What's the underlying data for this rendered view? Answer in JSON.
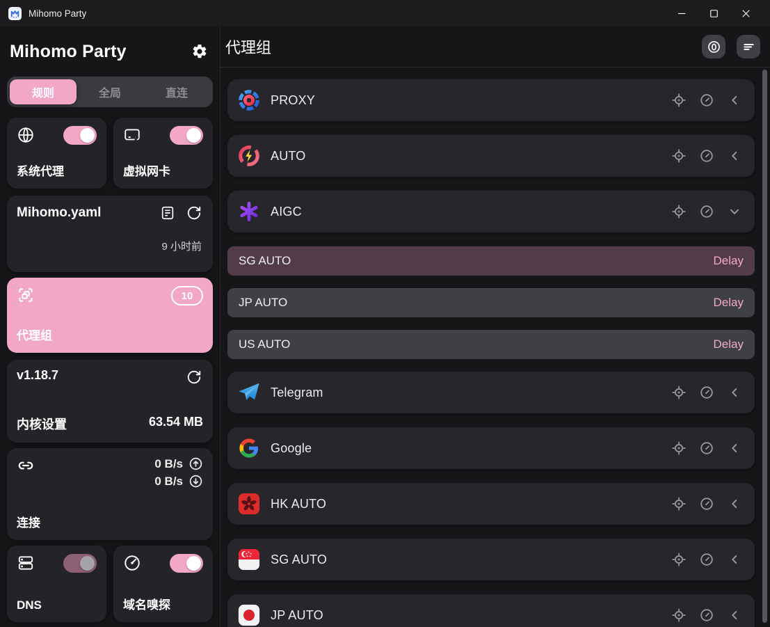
{
  "titlebar": {
    "app_title": "Mihomo Party"
  },
  "sidebar": {
    "title": "Mihomo Party",
    "tabs": [
      {
        "label": "规则",
        "active": true
      },
      {
        "label": "全局",
        "active": false
      },
      {
        "label": "直连",
        "active": false
      }
    ],
    "system_proxy": {
      "label": "系统代理",
      "enabled": true
    },
    "virtual_nic": {
      "label": "虚拟网卡",
      "enabled": true
    },
    "profile": {
      "name": "Mihomo.yaml",
      "updated": "9 小时前"
    },
    "proxy_groups_nav": {
      "label": "代理组",
      "badge": "10"
    },
    "core": {
      "version": "v1.18.7",
      "label": "内核设置",
      "memory": "63.54 MB"
    },
    "connections": {
      "label": "连接",
      "upload": "0 B/s",
      "download": "0 B/s"
    },
    "dns": {
      "label": "DNS",
      "enabled": false
    },
    "sniff": {
      "label": "域名嗅探",
      "enabled": true
    }
  },
  "main": {
    "title": "代理组",
    "groups": [
      {
        "name": "PROXY",
        "icon": "proxy",
        "expanded": false
      },
      {
        "name": "AUTO",
        "icon": "auto",
        "expanded": false
      },
      {
        "name": "AIGC",
        "icon": "openai",
        "expanded": true,
        "items": [
          {
            "name": "SG AUTO",
            "selected": true,
            "delay_label": "Delay"
          },
          {
            "name": "JP AUTO",
            "selected": false,
            "delay_label": "Delay"
          },
          {
            "name": "US AUTO",
            "selected": false,
            "delay_label": "Delay"
          }
        ]
      },
      {
        "name": "Telegram",
        "icon": "telegram",
        "expanded": false
      },
      {
        "name": "Google",
        "icon": "google",
        "expanded": false
      },
      {
        "name": "HK AUTO",
        "icon": "hk-flag",
        "expanded": false
      },
      {
        "name": "SG AUTO",
        "icon": "sg-flag",
        "expanded": false
      },
      {
        "name": "JP AUTO",
        "icon": "jp-flag",
        "expanded": false
      }
    ]
  },
  "colors": {
    "accent_pink": "#f2a7c6",
    "selected_node_bg": "#523c48",
    "delay_text": "#f3a9c7",
    "card_bg": "#232328",
    "row_bg": "#26262b"
  }
}
